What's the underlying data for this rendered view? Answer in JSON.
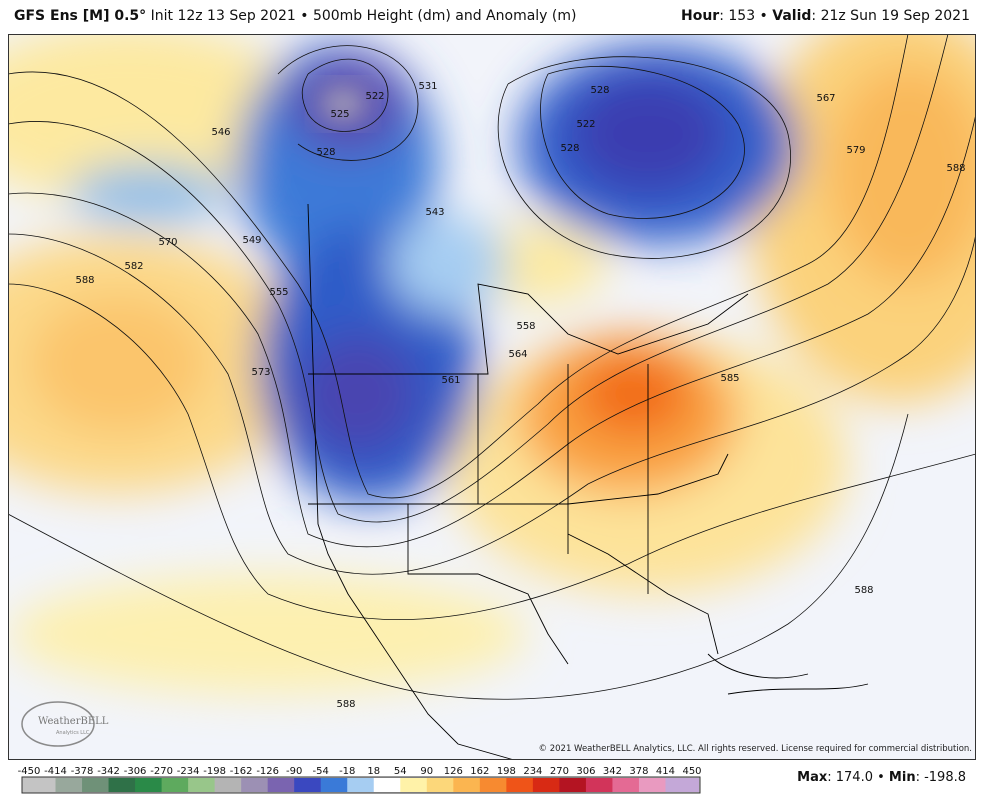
{
  "header": {
    "left": [
      {
        "text": "GFS Ens [M] 0.5°",
        "bold": true
      },
      {
        "text": " Init 12z 13 Sep 2021 • 500mb Height (dm) and Anomaly (m)",
        "bold": false
      }
    ],
    "right": [
      {
        "text": "Hour",
        "bold": true
      },
      {
        "text": ": 153 • ",
        "bold": false
      },
      {
        "text": "Valid",
        "bold": true
      },
      {
        "text": ": 21z Sun 19 Sep 2021",
        "bold": false
      }
    ]
  },
  "contour_labels": [
    "522",
    "525",
    "528",
    "531",
    "546",
    "549",
    "555",
    "570",
    "582",
    "588",
    "573",
    "561",
    "564",
    "558",
    "543",
    "528",
    "522",
    "528",
    "567",
    "579",
    "588",
    "585",
    "588",
    "588"
  ],
  "logo": {
    "name": "WeatherBELL",
    "tag": "Analytics LLC"
  },
  "copyright": "© 2021 WeatherBELL Analytics, LLC. All rights reserved. License required for commercial distribution.",
  "colorbar": {
    "labels": [
      -450,
      -414,
      -378,
      -342,
      -306,
      -270,
      -234,
      -198,
      -162,
      -126,
      -90,
      -54,
      -18,
      18,
      54,
      90,
      126,
      162,
      198,
      234,
      270,
      306,
      342,
      378,
      414,
      450
    ],
    "colors": [
      "#c4c4c4",
      "#98a89c",
      "#6f9178",
      "#2f7148",
      "#2a8a48",
      "#5eaa5e",
      "#98c68a",
      "#b4b4b4",
      "#9c90b4",
      "#7a64b0",
      "#3a48c0",
      "#3a7ad8",
      "#a6cdf2",
      "#ffffff",
      "#fff2a8",
      "#fcd77a",
      "#fbb550",
      "#f78a30",
      "#ef5418",
      "#d82a14",
      "#b41422",
      "#d2345a",
      "#e46a94",
      "#e99ac0",
      "#c4a8d8"
    ]
  },
  "footer": [
    {
      "text": "Max",
      "bold": true
    },
    {
      "text": ": 174.0 • ",
      "bold": false
    },
    {
      "text": "Min",
      "bold": true
    },
    {
      "text": ": -198.8",
      "bold": false
    }
  ]
}
